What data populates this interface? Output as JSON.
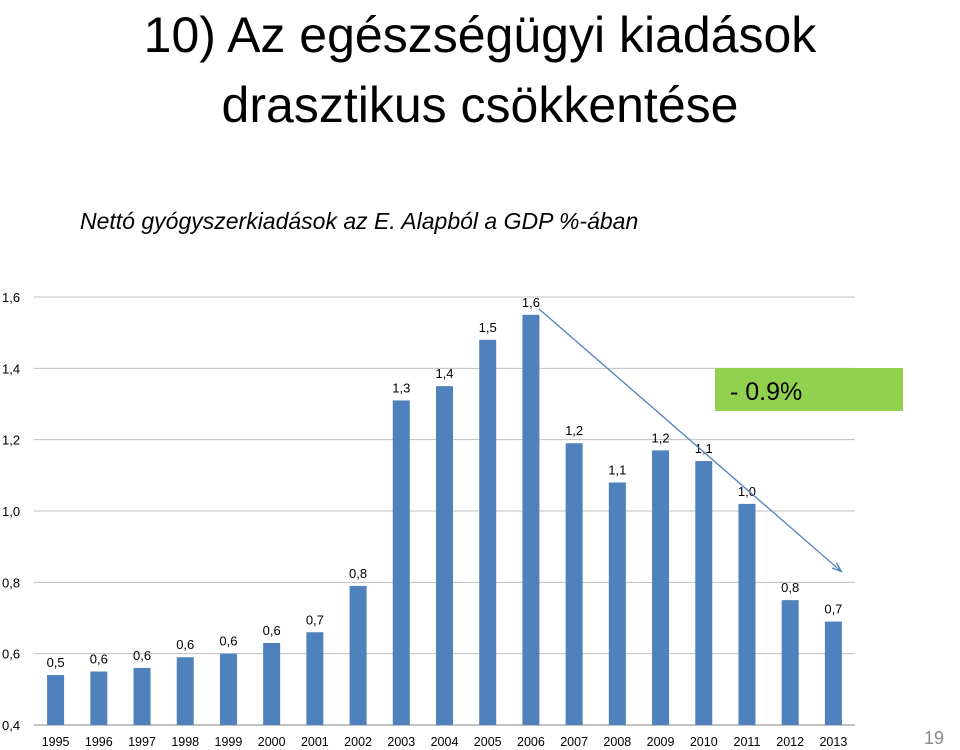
{
  "slide": {
    "title_line1": "10) Az egészségügyi kiadások",
    "title_line2": "drasztikus csökkentése",
    "page_number": "19"
  },
  "chart_data": {
    "type": "bar",
    "title": "Nettó gyógyszerkiadások az E. Alapból a GDP %-ában",
    "categories": [
      "1995",
      "1996",
      "1997",
      "1998",
      "1999",
      "2000",
      "2001",
      "2002",
      "2003",
      "2004",
      "2005",
      "2006",
      "2007",
      "2008",
      "2009",
      "2010",
      "2011",
      "2012",
      "2013"
    ],
    "values": [
      0.54,
      0.55,
      0.56,
      0.59,
      0.6,
      0.63,
      0.66,
      0.79,
      1.31,
      1.35,
      1.48,
      1.55,
      1.19,
      1.08,
      1.17,
      1.14,
      1.02,
      0.75,
      0.69
    ],
    "data_labels": [
      "0,5",
      "0,6",
      "0,6",
      "0,6",
      "0,6",
      "0,6",
      "0,7",
      "0,8",
      "1,3",
      "1,4",
      "1,5",
      "1,6",
      "1,2",
      "1,1",
      "1,2",
      "1,1",
      "1,0",
      "0,8",
      "0,7"
    ],
    "y_ticks": [
      "0,4",
      "0,6",
      "0,8",
      "1,0",
      "1,2",
      "1,4",
      "1,6"
    ],
    "ylim": [
      0.4,
      1.6
    ],
    "grid": true,
    "bar_color": "#4f81bd",
    "annotation": {
      "text": "- 0.9%",
      "box_color": "#92d050",
      "arrow_color": "#4f81bd",
      "arrow_from": "2006",
      "arrow_to": "2013"
    }
  }
}
